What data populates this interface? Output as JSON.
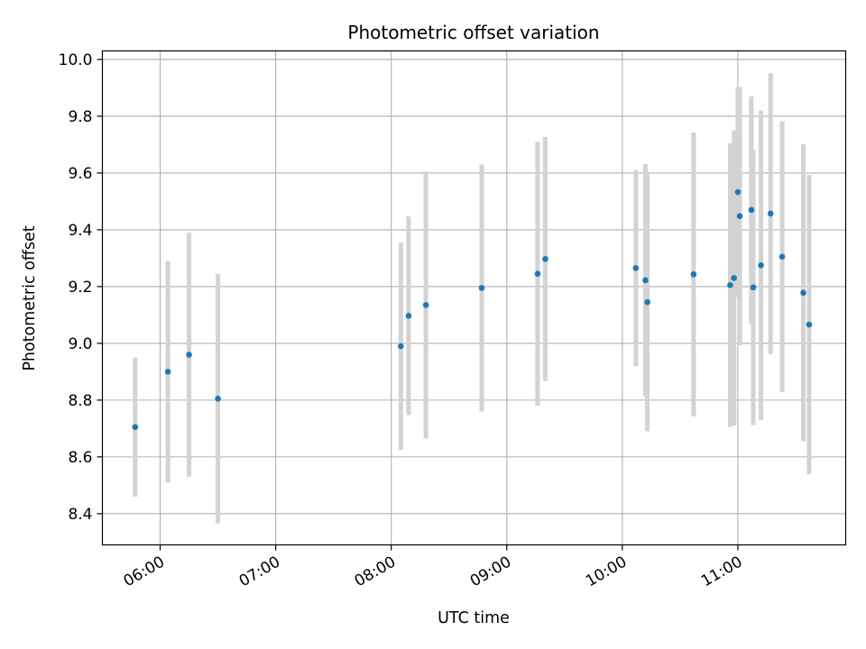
{
  "chart_data": {
    "type": "scatter",
    "title": "Photometric offset variation",
    "xlabel": "UTC time",
    "ylabel": "Photometric offset",
    "xlim": [
      "05:30",
      "11:56"
    ],
    "ylim": [
      8.29,
      10.03
    ],
    "x_ticks": [
      "06:00",
      "07:00",
      "08:00",
      "09:00",
      "10:00",
      "11:00"
    ],
    "y_ticks": [
      "8.4",
      "8.6",
      "8.8",
      "9.0",
      "9.2",
      "9.4",
      "9.6",
      "9.8",
      "10.0"
    ],
    "grid": true,
    "colors": {
      "points": "#1f77b4",
      "error_bars": "#d3d3d3"
    },
    "series": [
      {
        "points": [
          {
            "x": "05:47",
            "y": 8.705,
            "err": 0.245
          },
          {
            "x": "06:04",
            "y": 8.9,
            "err": 0.39
          },
          {
            "x": "06:15",
            "y": 8.96,
            "err": 0.43
          },
          {
            "x": "06:30",
            "y": 8.805,
            "err": 0.44
          },
          {
            "x": "08:05",
            "y": 8.99,
            "err": 0.365
          },
          {
            "x": "08:09",
            "y": 9.097,
            "err": 0.35
          },
          {
            "x": "08:18",
            "y": 9.135,
            "err": 0.47
          },
          {
            "x": "08:47",
            "y": 9.195,
            "err": 0.435
          },
          {
            "x": "09:16",
            "y": 9.245,
            "err": 0.465
          },
          {
            "x": "09:20",
            "y": 9.297,
            "err": 0.43
          },
          {
            "x": "10:07",
            "y": 9.265,
            "err": 0.345
          },
          {
            "x": "10:12",
            "y": 9.222,
            "err": 0.41
          },
          {
            "x": "10:13",
            "y": 9.145,
            "err": 0.455
          },
          {
            "x": "10:37",
            "y": 9.243,
            "err": 0.5
          },
          {
            "x": "10:56",
            "y": 9.205,
            "err": 0.5
          },
          {
            "x": "10:58",
            "y": 9.23,
            "err": 0.52
          },
          {
            "x": "11:00",
            "y": 9.533,
            "err": 0.37
          },
          {
            "x": "11:01",
            "y": 9.448,
            "err": 0.455
          },
          {
            "x": "11:07",
            "y": 9.47,
            "err": 0.4
          },
          {
            "x": "11:08",
            "y": 9.197,
            "err": 0.485
          },
          {
            "x": "11:12",
            "y": 9.275,
            "err": 0.545
          },
          {
            "x": "11:17",
            "y": 9.457,
            "err": 0.495
          },
          {
            "x": "11:23",
            "y": 9.305,
            "err": 0.477
          },
          {
            "x": "11:34",
            "y": 9.178,
            "err": 0.523
          },
          {
            "x": "11:37",
            "y": 9.066,
            "err": 0.527
          }
        ]
      }
    ]
  }
}
